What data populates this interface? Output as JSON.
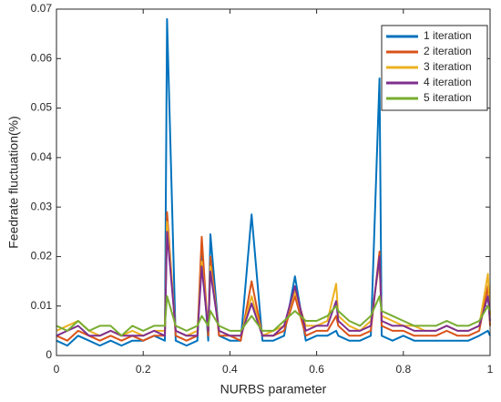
{
  "chart_data": {
    "type": "line",
    "x_label": "NURBS parameter",
    "y_label": "Feedrate fluctuation(%)",
    "x": [
      0,
      0.025,
      0.05,
      0.075,
      0.1,
      0.125,
      0.15,
      0.175,
      0.2,
      0.225,
      0.25,
      0.255,
      0.275,
      0.3,
      0.325,
      0.335,
      0.35,
      0.355,
      0.375,
      0.4,
      0.425,
      0.45,
      0.475,
      0.5,
      0.525,
      0.55,
      0.575,
      0.6,
      0.625,
      0.645,
      0.65,
      0.675,
      0.7,
      0.725,
      0.745,
      0.75,
      0.775,
      0.8,
      0.825,
      0.85,
      0.875,
      0.9,
      0.925,
      0.95,
      0.975,
      0.995,
      1
    ],
    "series": [
      {
        "name": "1 iteration",
        "color": "#0072bd",
        "values": [
          0.003,
          0.002,
          0.004,
          0.003,
          0.002,
          0.003,
          0.002,
          0.003,
          0.003,
          0.004,
          0.003,
          0.068,
          0.003,
          0.002,
          0.003,
          0.022,
          0.003,
          0.0245,
          0.004,
          0.003,
          0.003,
          0.0285,
          0.003,
          0.003,
          0.004,
          0.016,
          0.003,
          0.004,
          0.004,
          0.005,
          0.004,
          0.003,
          0.003,
          0.004,
          0.056,
          0.004,
          0.003,
          0.004,
          0.003,
          0.003,
          0.003,
          0.003,
          0.003,
          0.003,
          0.004,
          0.005,
          0.004
        ]
      },
      {
        "name": "2 iteration",
        "color": "#d95319",
        "values": [
          0.004,
          0.003,
          0.005,
          0.004,
          0.003,
          0.004,
          0.003,
          0.004,
          0.003,
          0.004,
          0.004,
          0.029,
          0.004,
          0.003,
          0.004,
          0.024,
          0.004,
          0.02,
          0.004,
          0.004,
          0.003,
          0.015,
          0.004,
          0.004,
          0.005,
          0.012,
          0.004,
          0.005,
          0.005,
          0.008,
          0.006,
          0.004,
          0.004,
          0.005,
          0.021,
          0.006,
          0.005,
          0.005,
          0.004,
          0.004,
          0.004,
          0.005,
          0.004,
          0.004,
          0.005,
          0.014,
          0.006
        ]
      },
      {
        "name": "3 iteration",
        "color": "#edb120",
        "values": [
          0.005,
          0.006,
          0.007,
          0.005,
          0.004,
          0.005,
          0.004,
          0.005,
          0.004,
          0.005,
          0.005,
          0.027,
          0.005,
          0.004,
          0.005,
          0.019,
          0.005,
          0.018,
          0.005,
          0.004,
          0.004,
          0.012,
          0.004,
          0.005,
          0.006,
          0.013,
          0.006,
          0.006,
          0.007,
          0.0145,
          0.008,
          0.006,
          0.005,
          0.007,
          0.019,
          0.008,
          0.007,
          0.006,
          0.006,
          0.005,
          0.005,
          0.006,
          0.005,
          0.005,
          0.006,
          0.0165,
          0.008
        ]
      },
      {
        "name": "4 iteration",
        "color": "#7e2f8e",
        "values": [
          0.004,
          0.005,
          0.006,
          0.004,
          0.004,
          0.005,
          0.004,
          0.004,
          0.004,
          0.005,
          0.004,
          0.025,
          0.005,
          0.004,
          0.004,
          0.018,
          0.005,
          0.017,
          0.005,
          0.004,
          0.004,
          0.0105,
          0.004,
          0.004,
          0.006,
          0.014,
          0.005,
          0.006,
          0.006,
          0.011,
          0.007,
          0.005,
          0.005,
          0.006,
          0.02,
          0.007,
          0.006,
          0.006,
          0.005,
          0.005,
          0.005,
          0.006,
          0.005,
          0.005,
          0.006,
          0.012,
          0.007
        ]
      },
      {
        "name": "5 iteration",
        "color": "#77ac30",
        "values": [
          0.006,
          0.005,
          0.007,
          0.005,
          0.006,
          0.006,
          0.004,
          0.006,
          0.005,
          0.006,
          0.006,
          0.012,
          0.006,
          0.005,
          0.006,
          0.008,
          0.006,
          0.009,
          0.006,
          0.005,
          0.005,
          0.008,
          0.005,
          0.005,
          0.007,
          0.009,
          0.007,
          0.007,
          0.008,
          0.01,
          0.009,
          0.007,
          0.006,
          0.008,
          0.012,
          0.009,
          0.008,
          0.007,
          0.006,
          0.006,
          0.006,
          0.007,
          0.006,
          0.006,
          0.007,
          0.01,
          0.009
        ]
      }
    ],
    "xlim": [
      0,
      1
    ],
    "xticks": [
      0,
      0.2,
      0.4,
      0.6,
      0.8,
      1
    ],
    "ylim": [
      0,
      0.07
    ],
    "yticks": [
      0,
      0.01,
      0.02,
      0.03,
      0.04,
      0.05,
      0.06,
      0.07
    ],
    "grid": false,
    "legend": "upper-right"
  }
}
